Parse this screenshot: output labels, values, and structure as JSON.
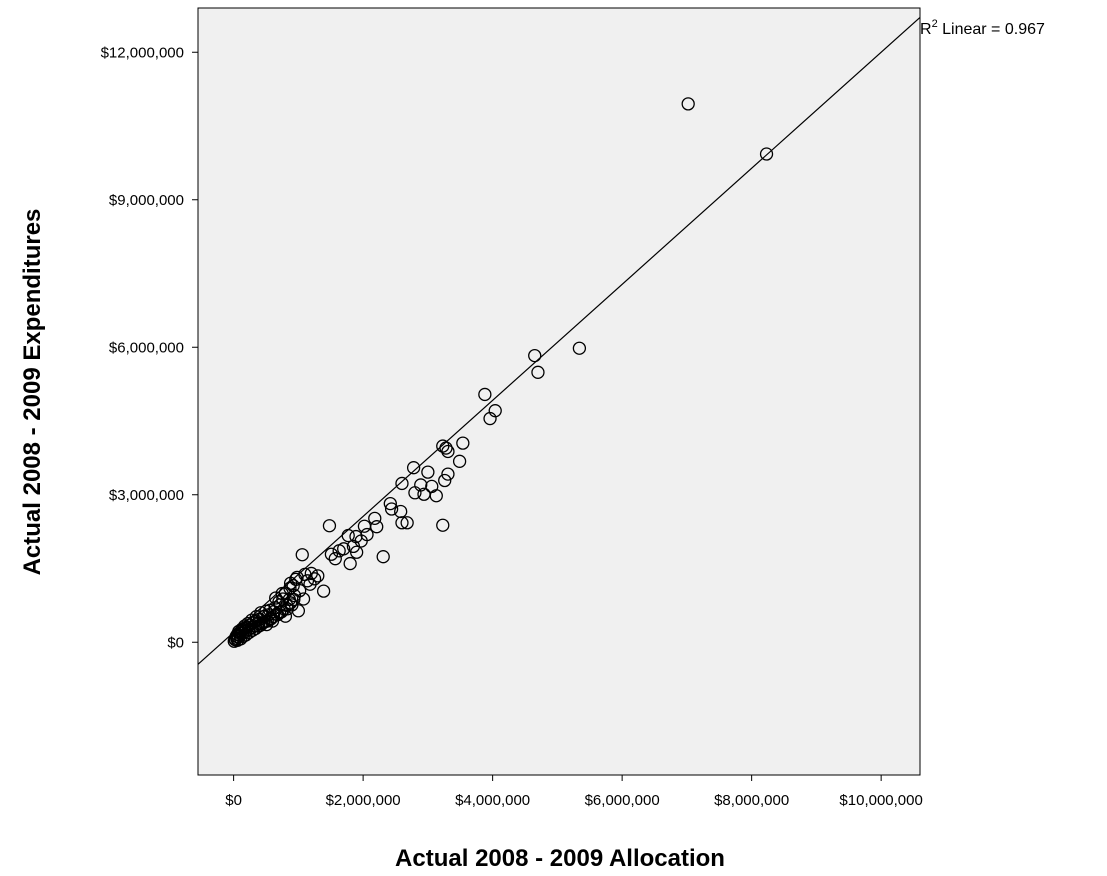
{
  "chart_data": {
    "type": "scatter",
    "xlabel": "Actual 2008 - 2009 Allocation",
    "ylabel": "Actual 2008 - 2009 Expenditures",
    "xlim": [
      -550000,
      10600000
    ],
    "ylim": [
      -2700000,
      12900000
    ],
    "x_ticks": [
      0,
      2000000,
      4000000,
      6000000,
      8000000,
      10000000
    ],
    "x_tick_labels": [
      "$0",
      "$2,000,000",
      "$4,000,000",
      "$6,000,000",
      "$8,000,000",
      "$10,000,000"
    ],
    "y_ticks": [
      0,
      3000000,
      6000000,
      9000000,
      12000000
    ],
    "y_tick_labels": [
      "$0",
      "$3,000,000",
      "$6,000,000",
      "$9,000,000",
      "$12,000,000"
    ],
    "fit_line": {
      "kind": "linear",
      "intercept": 200000,
      "slope": 1.18,
      "label_prefix": "R",
      "label_sup": "2",
      "label_suffix": " Linear = 0.967"
    },
    "grid": false,
    "plot_background": "#f0f0f0",
    "marker": "open-circle",
    "points": [
      [
        7020000,
        10950000
      ],
      [
        8230000,
        9930000
      ],
      [
        5340000,
        5980000
      ],
      [
        4650000,
        5830000
      ],
      [
        4700000,
        5490000
      ],
      [
        3880000,
        5040000
      ],
      [
        4040000,
        4710000
      ],
      [
        3960000,
        4550000
      ],
      [
        3540000,
        4050000
      ],
      [
        3230000,
        3990000
      ],
      [
        3280000,
        3950000
      ],
      [
        3310000,
        3880000
      ],
      [
        3490000,
        3680000
      ],
      [
        2780000,
        3550000
      ],
      [
        3000000,
        3460000
      ],
      [
        3310000,
        3420000
      ],
      [
        3260000,
        3290000
      ],
      [
        2890000,
        3200000
      ],
      [
        3060000,
        3170000
      ],
      [
        2800000,
        3040000
      ],
      [
        2940000,
        3010000
      ],
      [
        3130000,
        2980000
      ],
      [
        2600000,
        3230000
      ],
      [
        2420000,
        2820000
      ],
      [
        2440000,
        2710000
      ],
      [
        2580000,
        2660000
      ],
      [
        2180000,
        2520000
      ],
      [
        2210000,
        2350000
      ],
      [
        2600000,
        2430000
      ],
      [
        2680000,
        2430000
      ],
      [
        3230000,
        2380000
      ],
      [
        1480000,
        2370000
      ],
      [
        2020000,
        2360000
      ],
      [
        2060000,
        2190000
      ],
      [
        1770000,
        2170000
      ],
      [
        1890000,
        2150000
      ],
      [
        1970000,
        2060000
      ],
      [
        1850000,
        1950000
      ],
      [
        1700000,
        1900000
      ],
      [
        1630000,
        1860000
      ],
      [
        1510000,
        1790000
      ],
      [
        1900000,
        1830000
      ],
      [
        2310000,
        1740000
      ],
      [
        1570000,
        1700000
      ],
      [
        1800000,
        1600000
      ],
      [
        1060000,
        1780000
      ],
      [
        1250000,
        1290000
      ],
      [
        1100000,
        1380000
      ],
      [
        960000,
        1280000
      ],
      [
        1390000,
        1040000
      ],
      [
        1180000,
        1180000
      ],
      [
        870000,
        1100000
      ],
      [
        1020000,
        1050000
      ],
      [
        800000,
        1000000
      ],
      [
        940000,
        950000
      ],
      [
        1080000,
        880000
      ],
      [
        860000,
        870000
      ],
      [
        760000,
        880000
      ],
      [
        700000,
        820000
      ],
      [
        900000,
        760000
      ],
      [
        830000,
        680000
      ],
      [
        1000000,
        640000
      ],
      [
        740000,
        620000
      ],
      [
        680000,
        560000
      ],
      [
        800000,
        530000
      ],
      [
        620000,
        620000
      ],
      [
        540000,
        560000
      ],
      [
        580000,
        480000
      ],
      [
        500000,
        630000
      ],
      [
        460000,
        520000
      ],
      [
        420000,
        600000
      ],
      [
        520000,
        430000
      ],
      [
        460000,
        400000
      ],
      [
        400000,
        470000
      ],
      [
        380000,
        380000
      ],
      [
        350000,
        430000
      ],
      [
        330000,
        330000
      ],
      [
        300000,
        390000
      ],
      [
        280000,
        300000
      ],
      [
        250000,
        350000
      ],
      [
        230000,
        260000
      ],
      [
        200000,
        310000
      ],
      [
        180000,
        220000
      ],
      [
        160000,
        280000
      ],
      [
        140000,
        180000
      ],
      [
        120000,
        230000
      ],
      [
        100000,
        140000
      ],
      [
        90000,
        190000
      ],
      [
        70000,
        110000
      ],
      [
        60000,
        160000
      ],
      [
        50000,
        80000
      ],
      [
        40000,
        120000
      ],
      [
        30000,
        50000
      ],
      [
        20000,
        60000
      ],
      [
        10000,
        20000
      ],
      [
        60000,
        40000
      ],
      [
        110000,
        70000
      ],
      [
        150000,
        120000
      ],
      [
        190000,
        150000
      ],
      [
        240000,
        200000
      ],
      [
        290000,
        240000
      ],
      [
        340000,
        280000
      ],
      [
        390000,
        330000
      ],
      [
        440000,
        380000
      ],
      [
        490000,
        420000
      ],
      [
        560000,
        470000
      ],
      [
        610000,
        520000
      ],
      [
        660000,
        570000
      ],
      [
        710000,
        610000
      ],
      [
        780000,
        680000
      ],
      [
        820000,
        750000
      ],
      [
        880000,
        800000
      ],
      [
        930000,
        870000
      ],
      [
        350000,
        520000
      ],
      [
        280000,
        450000
      ],
      [
        220000,
        380000
      ],
      [
        170000,
        330000
      ],
      [
        130000,
        270000
      ],
      [
        80000,
        220000
      ],
      [
        420000,
        350000
      ],
      [
        510000,
        360000
      ],
      [
        600000,
        430000
      ],
      [
        480000,
        530000
      ],
      [
        560000,
        650000
      ],
      [
        640000,
        700000
      ],
      [
        720000,
        760000
      ],
      [
        650000,
        900000
      ],
      [
        750000,
        990000
      ],
      [
        920000,
        1150000
      ],
      [
        880000,
        1200000
      ],
      [
        1140000,
        1250000
      ],
      [
        1200000,
        1400000
      ],
      [
        1300000,
        1350000
      ],
      [
        980000,
        1320000
      ]
    ]
  }
}
